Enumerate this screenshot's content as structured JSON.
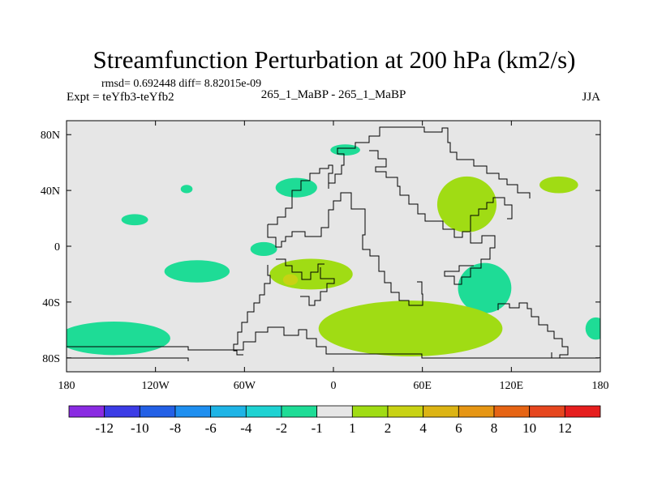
{
  "chart_data": {
    "type": "contour_map",
    "title": "Streamfunction Perturbation at 200 hPa (km2/s)",
    "stats_line": "rmsd= 0.692448 diff= 8.82015e-09",
    "experiment_label": "Expt = teYfb3-teYfb2",
    "run_label": "265_1_MaBP - 265_1_MaBP",
    "season_label": "JJA",
    "x_range": [
      -180,
      180
    ],
    "y_range": [
      -90,
      90
    ],
    "x_ticks": [
      {
        "value": -180,
        "label": "180"
      },
      {
        "value": -120,
        "label": "120W"
      },
      {
        "value": -60,
        "label": "60W"
      },
      {
        "value": 0,
        "label": "0"
      },
      {
        "value": 60,
        "label": "60E"
      },
      {
        "value": 120,
        "label": "120E"
      },
      {
        "value": 180,
        "label": "180"
      }
    ],
    "y_ticks": [
      {
        "value": 80,
        "label": "80N"
      },
      {
        "value": 40,
        "label": "40N"
      },
      {
        "value": 0,
        "label": "0"
      },
      {
        "value": -40,
        "label": "40S"
      },
      {
        "value": -80,
        "label": "80S"
      }
    ],
    "colorbar": {
      "colors": [
        "#8a2be2",
        "#3c3ce6",
        "#2360e6",
        "#1e8ff0",
        "#1eb4e6",
        "#1ed2d2",
        "#1edc96",
        "#e6e6e6",
        "#a0dc14",
        "#c8d214",
        "#dcb414",
        "#e69614",
        "#e66414",
        "#e6461e",
        "#e61e1e"
      ],
      "labels": [
        "-12",
        "-10",
        "-8",
        "-6",
        "-4",
        "-2",
        "-1",
        "1",
        "2",
        "4",
        "6",
        "8",
        "10",
        "12"
      ]
    },
    "regions": [
      {
        "level": "negative",
        "center": [
          -25,
          42
        ],
        "radii": [
          14,
          7
        ]
      },
      {
        "level": "negative",
        "center": [
          -99,
          41
        ],
        "radii": [
          4,
          3
        ]
      },
      {
        "level": "negative",
        "center": [
          -134,
          19
        ],
        "radii": [
          9,
          4
        ]
      },
      {
        "level": "negative",
        "center": [
          -47,
          -2
        ],
        "radii": [
          9,
          5
        ]
      },
      {
        "level": "negative",
        "center": [
          -92,
          -18
        ],
        "radii": [
          22,
          8
        ]
      },
      {
        "level": "negative",
        "center": [
          102,
          -30
        ],
        "radii": [
          18,
          18
        ]
      },
      {
        "level": "negative",
        "center": [
          -148,
          -66
        ],
        "radii": [
          38,
          12
        ]
      },
      {
        "level": "negative",
        "center": [
          177,
          -59
        ],
        "radii": [
          7,
          8
        ]
      },
      {
        "level": "negative",
        "center": [
          8,
          69
        ],
        "radii": [
          10,
          4
        ]
      },
      {
        "level": "positive",
        "center": [
          90,
          30
        ],
        "radii": [
          20,
          20
        ]
      },
      {
        "level": "positive",
        "center": [
          152,
          44
        ],
        "radii": [
          13,
          6
        ]
      },
      {
        "level": "positive",
        "center": [
          -15,
          -20
        ],
        "radii": [
          28,
          11
        ]
      },
      {
        "level": "positive",
        "center": [
          52,
          -59
        ],
        "radii": [
          62,
          20
        ]
      },
      {
        "level": "positive_strong",
        "center": [
          -29,
          -24
        ],
        "radii": [
          5,
          4
        ]
      }
    ]
  }
}
